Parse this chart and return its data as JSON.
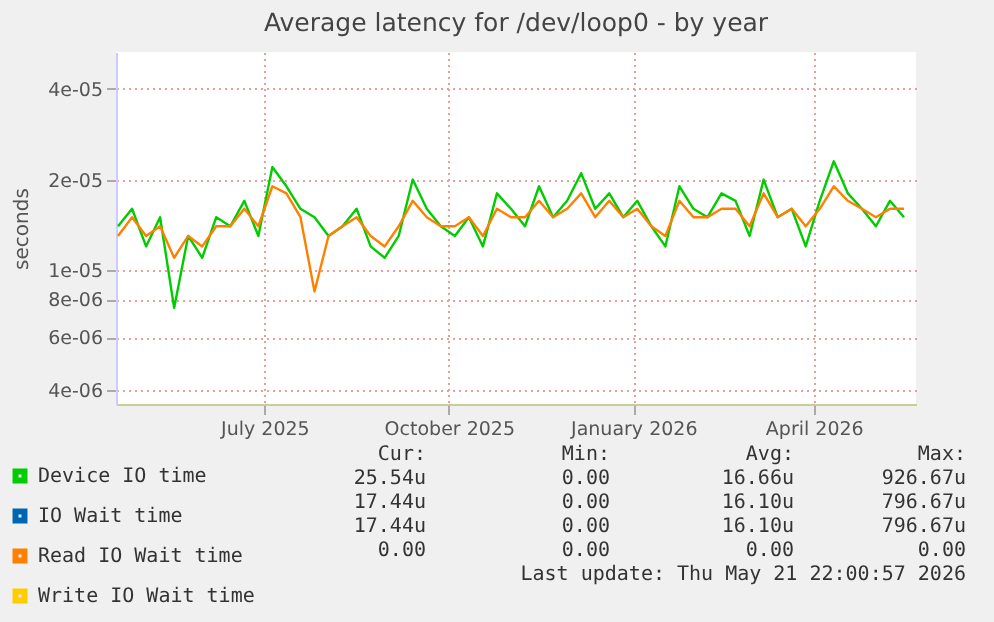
{
  "chart_data": {
    "type": "line",
    "title": "Average latency for /dev/loop0 - by year",
    "ylabel": "seconds",
    "log": true,
    "grid": true,
    "legend": "bottom left",
    "x": [
      "2025-04-19",
      "2025-04-26",
      "2025-05-03",
      "2025-05-10",
      "2025-05-17",
      "2025-05-24",
      "2025-05-31",
      "2025-06-07",
      "2025-06-14",
      "2025-06-21",
      "2025-06-28",
      "2025-07-05",
      "2025-07-12",
      "2025-07-19",
      "2025-07-26",
      "2025-08-02",
      "2025-08-09",
      "2025-08-16",
      "2025-08-23",
      "2025-08-30",
      "2025-09-06",
      "2025-09-13",
      "2025-09-20",
      "2025-09-27",
      "2025-10-04",
      "2025-10-11",
      "2025-10-18",
      "2025-10-25",
      "2025-11-01",
      "2025-11-08",
      "2025-11-15",
      "2025-11-22",
      "2025-11-29",
      "2025-12-06",
      "2025-12-13",
      "2025-12-20",
      "2025-12-27",
      "2026-01-03",
      "2026-01-10",
      "2026-01-17",
      "2026-01-24",
      "2026-01-31",
      "2026-02-07",
      "2026-02-14",
      "2026-02-21",
      "2026-02-28",
      "2026-03-07",
      "2026-03-14",
      "2026-03-21",
      "2026-03-28",
      "2026-04-04",
      "2026-04-11",
      "2026-04-18",
      "2026-04-25",
      "2026-05-02",
      "2026-05-09",
      "2026-05-16"
    ],
    "xlim": [
      "2025-04-18",
      "2026-05-22"
    ],
    "xticks": [
      {
        "value": "2025-07-01",
        "label": "July 2025"
      },
      {
        "value": "2025-10-01",
        "label": "October 2025"
      },
      {
        "value": "2026-01-01",
        "label": "January 2026"
      },
      {
        "value": "2026-04-01",
        "label": "April 2026"
      }
    ],
    "ylim": [
      3.6e-06,
      5.3e-05
    ],
    "yticks": [
      {
        "value": 4e-06,
        "label": "4e-06"
      },
      {
        "value": 6e-06,
        "label": "6e-06"
      },
      {
        "value": 8e-06,
        "label": "8e-06"
      },
      {
        "value": 1e-05,
        "label": "1e-05"
      },
      {
        "value": 2e-05,
        "label": "2e-05"
      },
      {
        "value": 4e-05,
        "label": "4e-05"
      }
    ],
    "series": [
      {
        "name": "Device IO time",
        "color": "#00cc00",
        "values": [
          1.4e-05,
          1.6e-05,
          1.2e-05,
          1.5e-05,
          7.5e-06,
          1.3e-05,
          1.1e-05,
          1.5e-05,
          1.4e-05,
          1.7e-05,
          1.3e-05,
          2.2e-05,
          1.9e-05,
          1.6e-05,
          1.5e-05,
          1.3e-05,
          1.4e-05,
          1.6e-05,
          1.2e-05,
          1.1e-05,
          1.3e-05,
          2e-05,
          1.6e-05,
          1.4e-05,
          1.3e-05,
          1.5e-05,
          1.2e-05,
          1.8e-05,
          1.6e-05,
          1.4e-05,
          1.9e-05,
          1.5e-05,
          1.7e-05,
          2.1e-05,
          1.6e-05,
          1.8e-05,
          1.5e-05,
          1.7e-05,
          1.4e-05,
          1.2e-05,
          1.9e-05,
          1.6e-05,
          1.5e-05,
          1.8e-05,
          1.7e-05,
          1.3e-05,
          2e-05,
          1.5e-05,
          1.6e-05,
          1.2e-05,
          1.7e-05,
          2.3e-05,
          1.8e-05,
          1.6e-05,
          1.4e-05,
          1.7e-05,
          1.5e-05
        ]
      },
      {
        "name": "IO Wait time",
        "color": "#0066b3",
        "values": [
          null,
          null,
          null,
          null,
          null,
          null,
          null,
          null,
          null,
          null,
          null,
          null,
          null,
          null,
          null,
          null,
          null,
          null,
          null,
          null,
          null,
          null,
          null,
          null,
          null,
          null,
          null,
          null,
          null,
          null,
          null,
          null,
          null,
          null,
          null,
          null,
          null,
          null,
          null,
          null,
          null,
          null,
          null,
          null,
          null,
          null,
          null,
          null,
          null,
          null,
          null,
          null,
          null,
          null,
          null,
          null,
          null
        ]
      },
      {
        "name": "Read IO Wait time",
        "color": "#ff8000",
        "values": [
          1.3e-05,
          1.5e-05,
          1.3e-05,
          1.4e-05,
          1.1e-05,
          1.3e-05,
          1.2e-05,
          1.4e-05,
          1.4e-05,
          1.6e-05,
          1.4e-05,
          1.9e-05,
          1.8e-05,
          1.5e-05,
          8.5e-06,
          1.3e-05,
          1.4e-05,
          1.5e-05,
          1.3e-05,
          1.2e-05,
          1.4e-05,
          1.7e-05,
          1.5e-05,
          1.4e-05,
          1.4e-05,
          1.5e-05,
          1.3e-05,
          1.6e-05,
          1.5e-05,
          1.5e-05,
          1.7e-05,
          1.5e-05,
          1.6e-05,
          1.8e-05,
          1.5e-05,
          1.7e-05,
          1.5e-05,
          1.6e-05,
          1.4e-05,
          1.3e-05,
          1.7e-05,
          1.5e-05,
          1.5e-05,
          1.6e-05,
          1.6e-05,
          1.4e-05,
          1.8e-05,
          1.5e-05,
          1.6e-05,
          1.4e-05,
          1.6e-05,
          1.9e-05,
          1.7e-05,
          1.6e-05,
          1.5e-05,
          1.6e-05,
          1.6e-05
        ]
      },
      {
        "name": "Write IO Wait time",
        "color": "#ffcc00",
        "values": [
          null,
          null,
          null,
          null,
          null,
          null,
          null,
          null,
          null,
          null,
          null,
          null,
          null,
          null,
          null,
          null,
          null,
          null,
          null,
          null,
          null,
          null,
          null,
          null,
          null,
          null,
          null,
          null,
          null,
          null,
          null,
          null,
          null,
          null,
          null,
          null,
          null,
          null,
          null,
          null,
          null,
          null,
          null,
          null,
          null,
          null,
          null,
          null,
          null,
          null,
          null,
          null,
          null,
          null,
          null,
          null,
          null
        ]
      }
    ],
    "annotations": [
      "Cur:",
      "Min:",
      "Avg:",
      "Max:",
      "25.54u",
      "0.00",
      "16.66u",
      "926.67u",
      "17.44u",
      "0.00",
      "16.10u",
      "796.67u",
      "17.44u",
      "0.00",
      "16.10u",
      "796.67u",
      "0.00",
      "0.00",
      "0.00",
      "0.00",
      "Last update: Thu May 21 22:00:57 2026"
    ]
  }
}
